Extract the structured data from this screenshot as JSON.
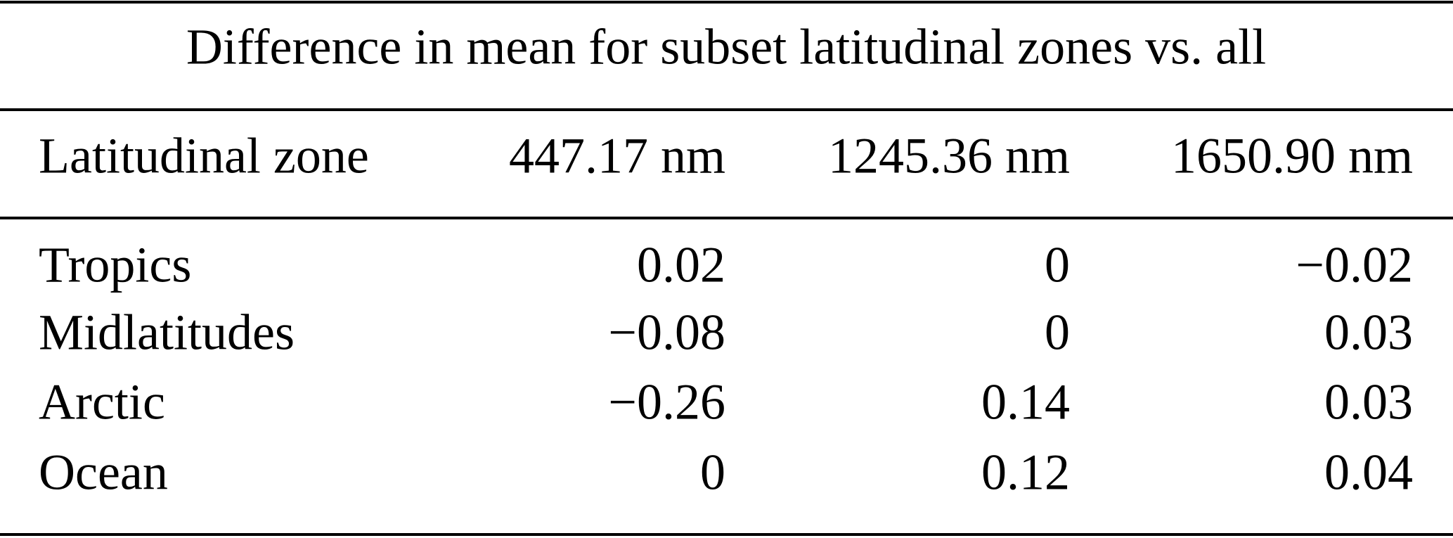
{
  "title": "Difference in mean for subset latitudinal zones vs. all",
  "table": {
    "header": [
      "Latitudinal zone",
      "447.17 nm",
      "1245.36 nm",
      "1650.90 nm"
    ],
    "rows": [
      [
        "Tropics",
        "0.02",
        "0",
        "−0.02"
      ],
      [
        "Midlatitudes",
        "−0.08",
        "0",
        "0.03"
      ],
      [
        "Arctic",
        "−0.26",
        "0.14",
        "0.03"
      ],
      [
        "Ocean",
        "0",
        "0.12",
        "0.04"
      ]
    ]
  }
}
